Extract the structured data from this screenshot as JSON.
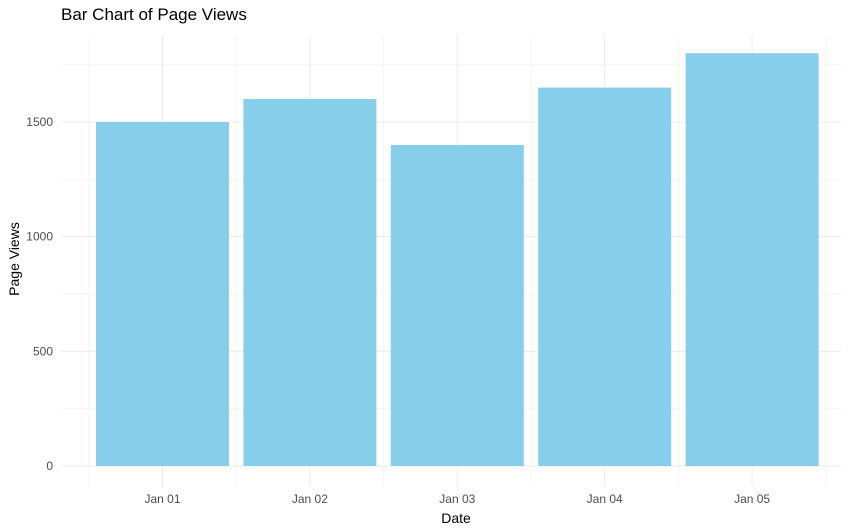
{
  "chart_data": {
    "type": "bar",
    "title": "Bar Chart of Page Views",
    "xlabel": "Date",
    "ylabel": "Page Views",
    "categories": [
      "Jan 01",
      "Jan 02",
      "Jan 03",
      "Jan 04",
      "Jan 05"
    ],
    "values": [
      1500,
      1600,
      1400,
      1650,
      1800
    ],
    "ylim": [
      0,
      1800
    ],
    "yticks": [
      0,
      500,
      1000,
      1500
    ],
    "ytick_labels": [
      "0",
      "500",
      "1000",
      "1500"
    ],
    "grid": true,
    "colors": {
      "bar": "#87CEEB",
      "grid_major": "#ebebeb",
      "grid_minor": "#f5f5f5"
    }
  }
}
